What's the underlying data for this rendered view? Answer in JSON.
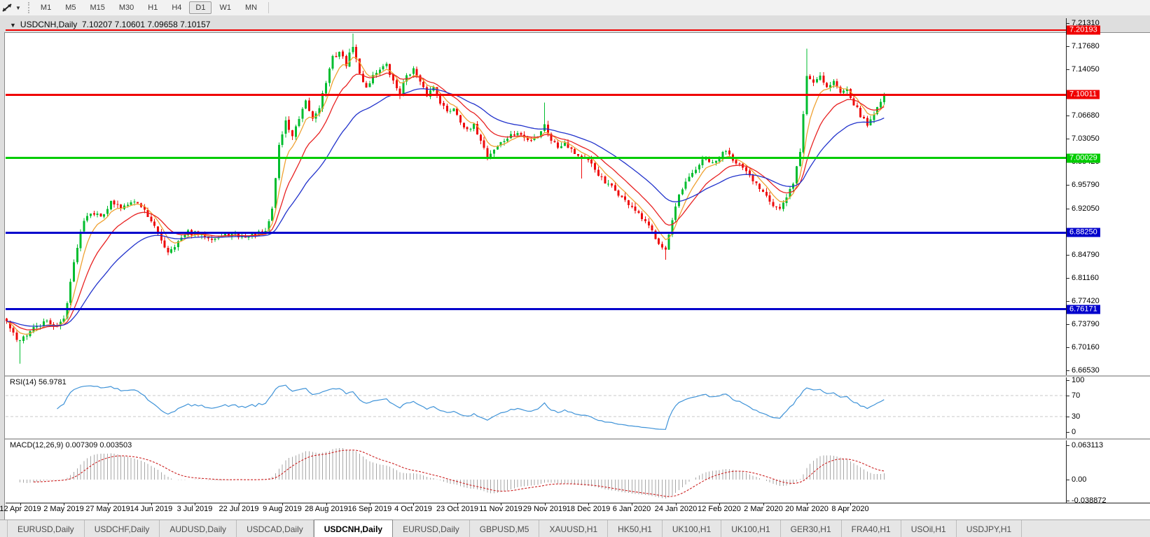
{
  "toolbar": {
    "drawing_tool_icon": "trendline-tool-icon",
    "dropdown_caret": "▼",
    "timeframes": [
      "M1",
      "M5",
      "M15",
      "M30",
      "H1",
      "H4",
      "D1",
      "W1",
      "MN"
    ],
    "active_timeframe": "D1"
  },
  "chart_header": {
    "collapse_icon": "▼",
    "symbol": "USDCNH,Daily",
    "ohlc": "7.10207 7.10601 7.09658 7.10157"
  },
  "rsi_panel": {
    "label": "RSI(14) 56.9781",
    "axis_labels": [
      "100",
      "70",
      "30",
      "0"
    ]
  },
  "macd_panel": {
    "label": "MACD(12,26,9) 0.007309 0.003503",
    "axis_labels": [
      "0.063113",
      "0.00",
      "-0.038872"
    ]
  },
  "tabs": {
    "active_index": 4,
    "items": [
      "EURUSD,Daily",
      "USDCHF,Daily",
      "AUDUSD,Daily",
      "USDCAD,Daily",
      "USDCNH,Daily",
      "EURUSD,Daily",
      "GBPUSD,M5",
      "XAUUSD,H1",
      "HK50,H1",
      "UK100,H1",
      "UK100,H1",
      "GER30,H1",
      "FRA40,H1",
      "USOil,H1",
      "USDJPY,H1"
    ]
  },
  "chart_data": {
    "type": "candlestick",
    "symbol": "USDCNH",
    "timeframe": "Daily",
    "title": "USDCNH,Daily  7.10207 7.10601 7.09658 7.10157",
    "price_axis_ticks": [
      "7.21310",
      "7.17680",
      "7.14050",
      "7.06680",
      "7.03050",
      "6.99420",
      "6.95790",
      "6.92050",
      "6.84790",
      "6.81160",
      "6.77420",
      "6.73790",
      "6.70160",
      "6.66530"
    ],
    "y_domain": [
      6.6653,
      7.2131
    ],
    "x_dates": [
      "12 Apr 2019",
      "2 May 2019",
      "27 May 2019",
      "14 Jun 2019",
      "3 Jul 2019",
      "22 Jul 2019",
      "9 Aug 2019",
      "28 Aug 2019",
      "16 Sep 2019",
      "4 Oct 2019",
      "23 Oct 2019",
      "11 Nov 2019",
      "29 Nov 2019",
      "18 Dec 2019",
      "6 Jan 2020",
      "24 Jan 2020",
      "12 Feb 2020",
      "2 Mar 2020",
      "20 Mar 2020",
      "8 Apr 2020"
    ],
    "horizontal_levels": [
      {
        "price": 7.20193,
        "label": "7.20193",
        "color": "#f00000",
        "width": 2
      },
      {
        "price": 7.10011,
        "label": "7.10011",
        "color": "#f00000",
        "width": 3
      },
      {
        "price": 7.00029,
        "label": "7.00029",
        "color": "#00cc00",
        "width": 3
      },
      {
        "price": 6.8825,
        "label": "6.88250",
        "color": "#0000cc",
        "width": 3
      },
      {
        "price": 6.76171,
        "label": "6.76171",
        "color": "#0000cc",
        "width": 3
      }
    ],
    "candles": {
      "count": 262,
      "up_color": "#00bd2f",
      "down_color": "#ee0a0a",
      "close_anchors": [
        [
          0,
          6.742
        ],
        [
          3,
          6.712
        ],
        [
          6,
          6.722
        ],
        [
          9,
          6.735
        ],
        [
          12,
          6.742
        ],
        [
          15,
          6.735
        ],
        [
          17,
          6.746
        ],
        [
          19,
          6.805
        ],
        [
          21,
          6.862
        ],
        [
          23,
          6.905
        ],
        [
          25,
          6.916
        ],
        [
          28,
          6.908
        ],
        [
          31,
          6.93
        ],
        [
          34,
          6.922
        ],
        [
          37,
          6.934
        ],
        [
          40,
          6.925
        ],
        [
          43,
          6.902
        ],
        [
          46,
          6.87
        ],
        [
          48,
          6.853
        ],
        [
          51,
          6.868
        ],
        [
          54,
          6.883
        ],
        [
          58,
          6.879
        ],
        [
          62,
          6.874
        ],
        [
          66,
          6.88
        ],
        [
          70,
          6.876
        ],
        [
          74,
          6.88
        ],
        [
          77,
          6.882
        ],
        [
          79,
          6.92
        ],
        [
          81,
          7.02
        ],
        [
          83,
          7.058
        ],
        [
          85,
          7.035
        ],
        [
          87,
          7.06
        ],
        [
          89,
          7.088
        ],
        [
          91,
          7.062
        ],
        [
          93,
          7.082
        ],
        [
          95,
          7.12
        ],
        [
          97,
          7.158
        ],
        [
          99,
          7.168
        ],
        [
          101,
          7.148
        ],
        [
          103,
          7.178
        ],
        [
          105,
          7.132
        ],
        [
          107,
          7.112
        ],
        [
          109,
          7.13
        ],
        [
          111,
          7.142
        ],
        [
          113,
          7.146
        ],
        [
          115,
          7.12
        ],
        [
          117,
          7.102
        ],
        [
          119,
          7.132
        ],
        [
          121,
          7.14
        ],
        [
          123,
          7.118
        ],
        [
          125,
          7.1
        ],
        [
          127,
          7.112
        ],
        [
          129,
          7.09
        ],
        [
          131,
          7.072
        ],
        [
          133,
          7.08
        ],
        [
          135,
          7.06
        ],
        [
          137,
          7.042
        ],
        [
          139,
          7.05
        ],
        [
          141,
          7.03
        ],
        [
          143,
          7.002
        ],
        [
          146,
          7.02
        ],
        [
          149,
          7.032
        ],
        [
          152,
          7.04
        ],
        [
          155,
          7.028
        ],
        [
          158,
          7.036
        ],
        [
          160,
          7.052
        ],
        [
          162,
          7.03
        ],
        [
          164,
          7.018
        ],
        [
          166,
          7.026
        ],
        [
          168,
          7.014
        ],
        [
          170,
          7.004
        ],
        [
          172,
          6.999
        ],
        [
          174,
          6.989
        ],
        [
          176,
          6.975
        ],
        [
          178,
          6.96
        ],
        [
          180,
          6.954
        ],
        [
          182,
          6.944
        ],
        [
          184,
          6.932
        ],
        [
          186,
          6.924
        ],
        [
          188,
          6.91
        ],
        [
          190,
          6.898
        ],
        [
          192,
          6.884
        ],
        [
          194,
          6.868
        ],
        [
          196,
          6.856
        ],
        [
          198,
          6.9
        ],
        [
          200,
          6.94
        ],
        [
          202,
          6.96
        ],
        [
          204,
          6.976
        ],
        [
          206,
          6.99
        ],
        [
          208,
          7.0
        ],
        [
          210,
          6.99
        ],
        [
          212,
          7.0
        ],
        [
          214,
          7.014
        ],
        [
          216,
          7.0
        ],
        [
          218,
          6.99
        ],
        [
          220,
          6.976
        ],
        [
          222,
          6.964
        ],
        [
          224,
          6.954
        ],
        [
          226,
          6.944
        ],
        [
          228,
          6.926
        ],
        [
          230,
          6.92
        ],
        [
          232,
          6.936
        ],
        [
          234,
          6.962
        ],
        [
          236,
          7.01
        ],
        [
          238,
          7.13
        ],
        [
          240,
          7.12
        ],
        [
          242,
          7.132
        ],
        [
          244,
          7.112
        ],
        [
          246,
          7.122
        ],
        [
          248,
          7.102
        ],
        [
          250,
          7.112
        ],
        [
          252,
          7.086
        ],
        [
          254,
          7.068
        ],
        [
          256,
          7.052
        ],
        [
          258,
          7.07
        ],
        [
          260,
          7.09
        ],
        [
          261,
          7.102
        ]
      ],
      "wick_spikes": [
        {
          "i": 4,
          "low": 6.676
        },
        {
          "i": 103,
          "high": 7.1965
        },
        {
          "i": 160,
          "high": 7.088
        },
        {
          "i": 171,
          "low": 6.968
        },
        {
          "i": 196,
          "low": 6.84
        },
        {
          "i": 238,
          "high": 7.173
        }
      ]
    },
    "moving_averages": [
      {
        "period": 6,
        "color": "#efa233"
      },
      {
        "period": 14,
        "color": "#e82222"
      },
      {
        "period": 32,
        "color": "#2233cc"
      }
    ],
    "indicators": {
      "rsi": {
        "period": 14,
        "current": 56.9781,
        "levels": [
          70,
          30
        ],
        "axis": [
          100,
          70,
          30,
          0
        ],
        "color": "#3f93d8"
      },
      "macd": {
        "fast": 12,
        "slow": 26,
        "signal": 9,
        "current_main": 0.007309,
        "current_signal": 0.003503,
        "axis_max": 0.063113,
        "axis_zero": 0.0,
        "axis_min": -0.038872,
        "hist_color": "#a6a6a6",
        "signal_color": "#cc2222"
      }
    }
  }
}
